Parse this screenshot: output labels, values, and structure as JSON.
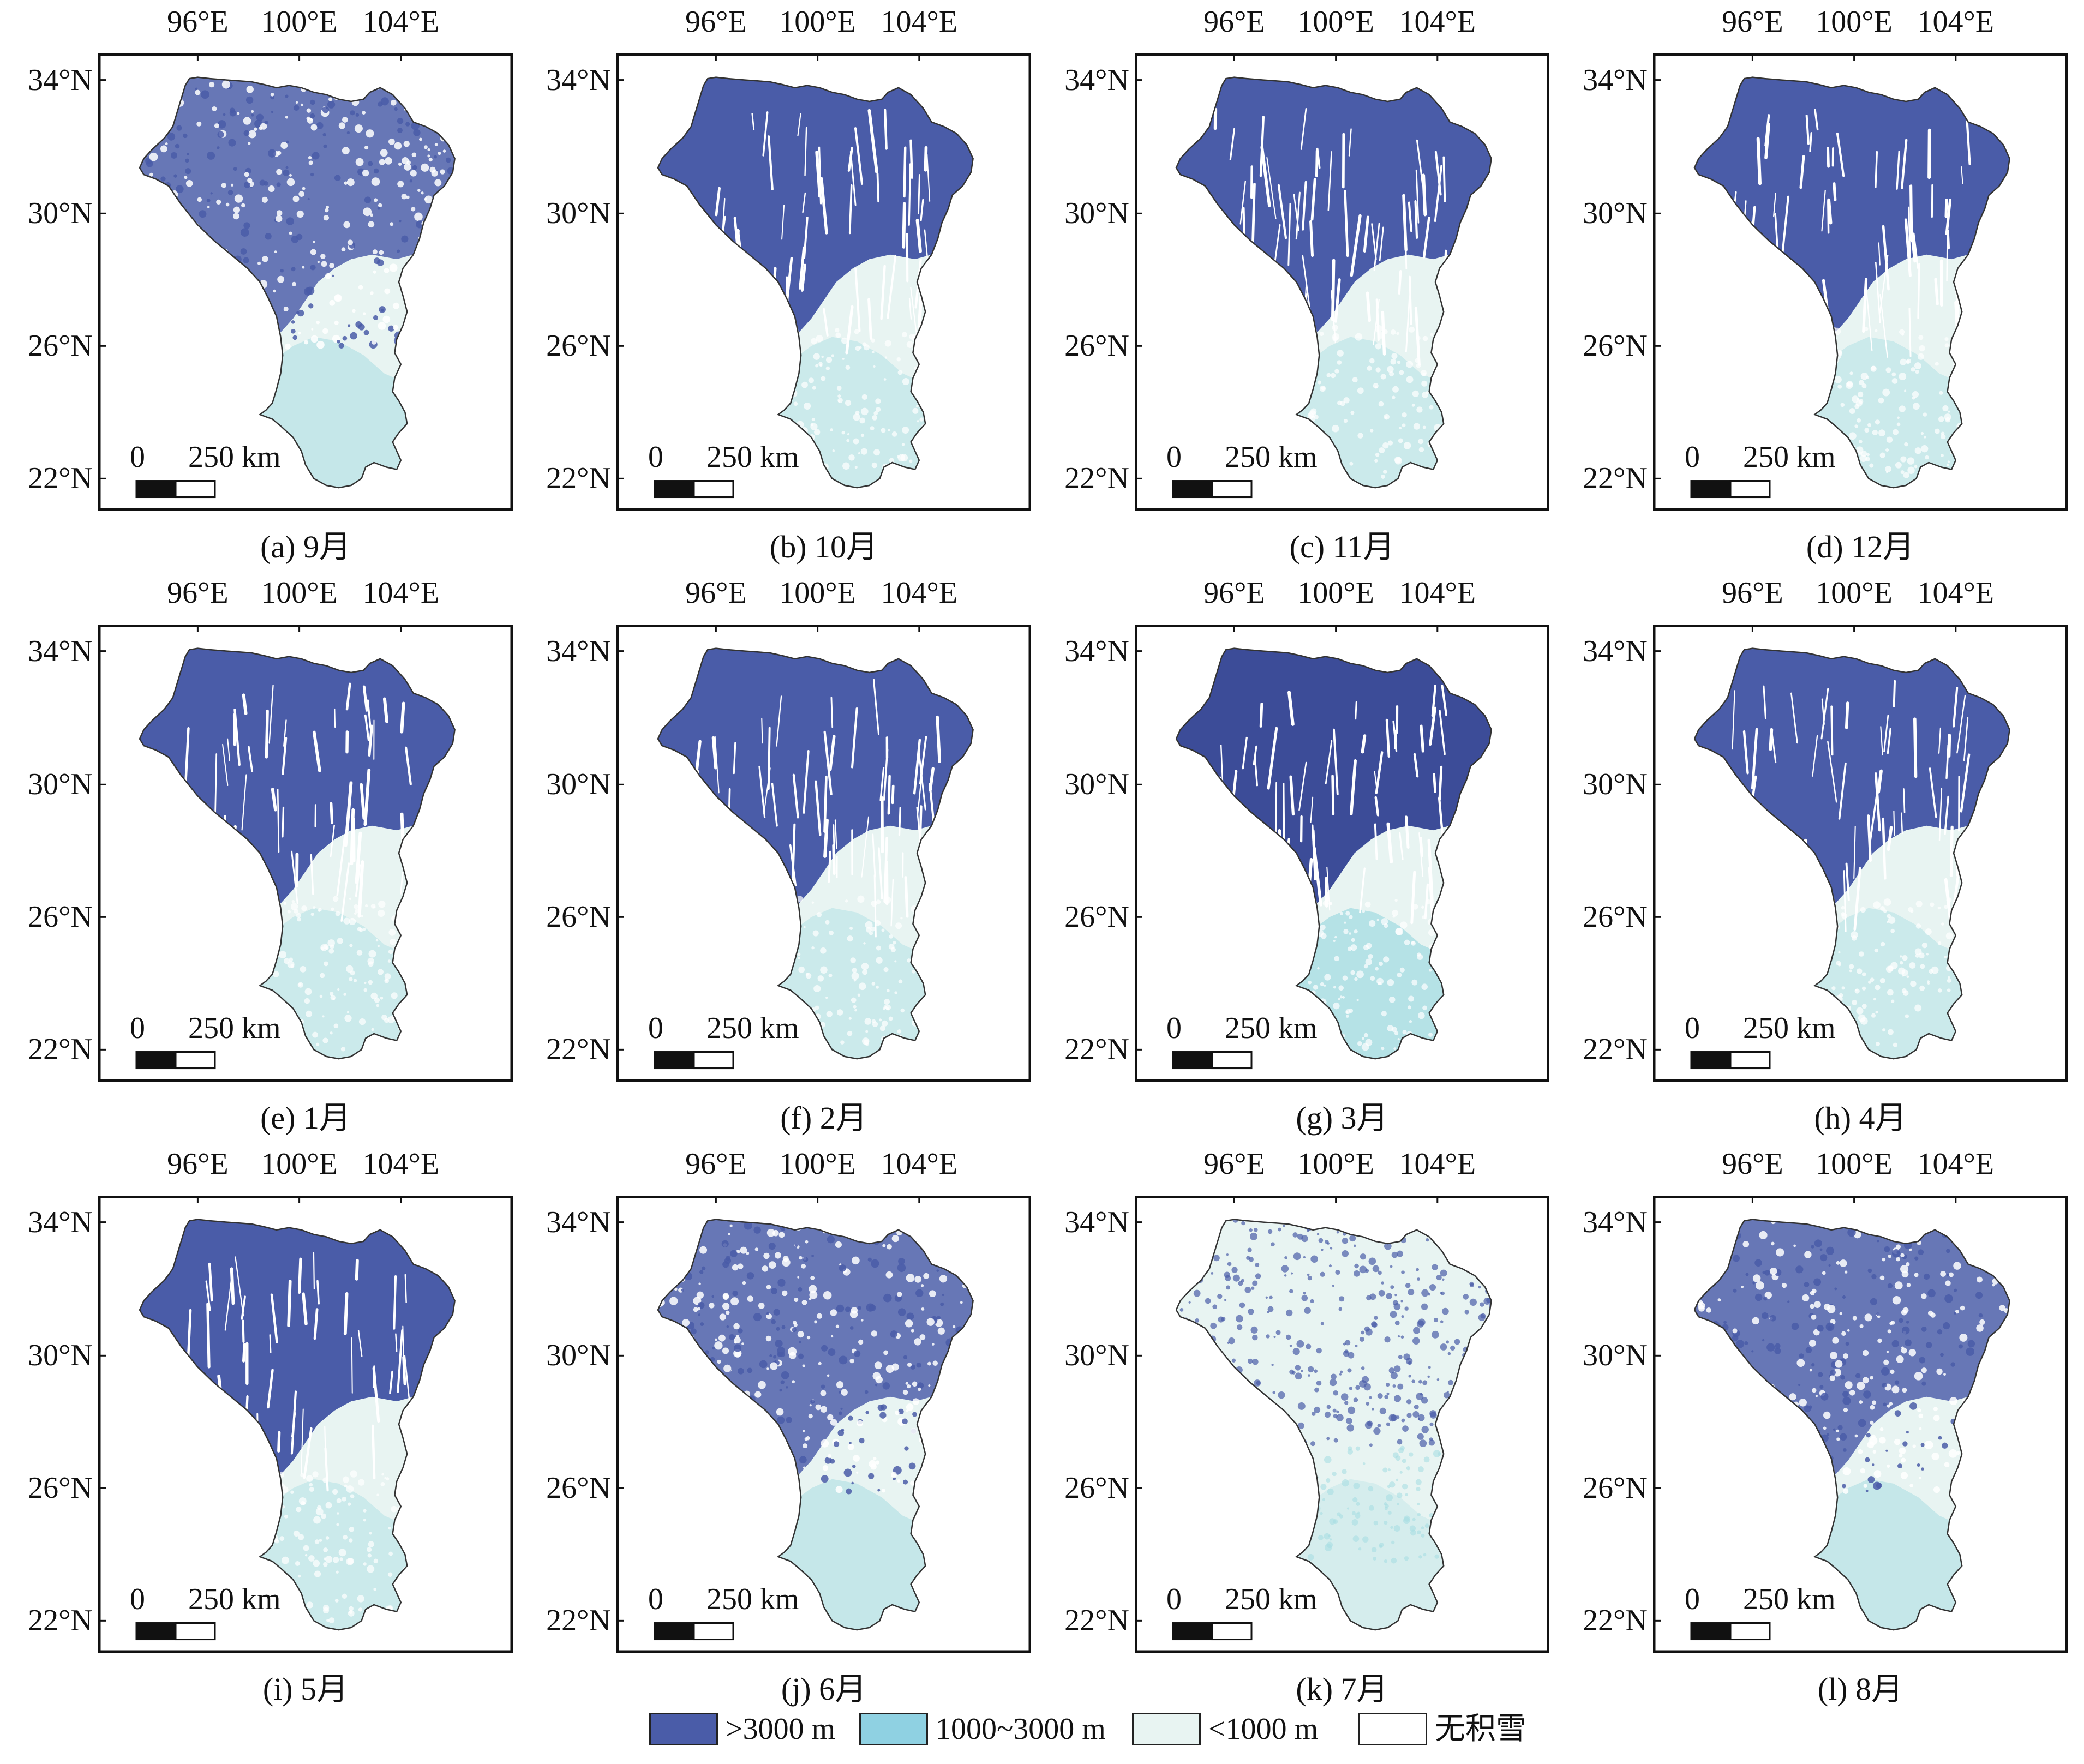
{
  "axes": {
    "lon_ticks": [
      "96°E",
      "100°E",
      "104°E"
    ],
    "lat_ticks": [
      "34°N",
      "30°N",
      "26°N",
      "22°N"
    ]
  },
  "scale_bar": {
    "zero": "0",
    "distance": "250 km"
  },
  "panels": [
    {
      "caption": "(a) 9月",
      "month": "9月",
      "pattern": "mottled"
    },
    {
      "caption": "(b) 10月",
      "month": "10月",
      "pattern": "north"
    },
    {
      "caption": "(c) 11月",
      "month": "11月",
      "pattern": "north"
    },
    {
      "caption": "(d) 12月",
      "month": "12月",
      "pattern": "north"
    },
    {
      "caption": "(e) 1月",
      "month": "1月",
      "pattern": "north"
    },
    {
      "caption": "(f) 2月",
      "month": "2月",
      "pattern": "north"
    },
    {
      "caption": "(g) 3月",
      "month": "3月",
      "pattern": "north-dark"
    },
    {
      "caption": "(h) 4月",
      "month": "4月",
      "pattern": "north"
    },
    {
      "caption": "(i) 5月",
      "month": "5月",
      "pattern": "north"
    },
    {
      "caption": "(j) 6月",
      "month": "6月",
      "pattern": "mottled"
    },
    {
      "caption": "(k) 7月",
      "month": "7月",
      "pattern": "sparse"
    },
    {
      "caption": "(l) 8月",
      "month": "8月",
      "pattern": "mottled"
    }
  ],
  "legend": [
    {
      "label": ">3000 m",
      "color": "#4a5ca8"
    },
    {
      "label": "1000~3000 m",
      "color": "#8fd1e2"
    },
    {
      "label": "<1000 m",
      "color": "#e8f4f2"
    },
    {
      "label": "无积雪",
      "color": "#ffffff"
    }
  ],
  "colors": {
    "high": "#4a5ca8",
    "high_dark": "#3c4c98",
    "mid": "#a8dde2",
    "low": "#e8f4f2",
    "none": "#ffffff",
    "outline": "#333333"
  }
}
